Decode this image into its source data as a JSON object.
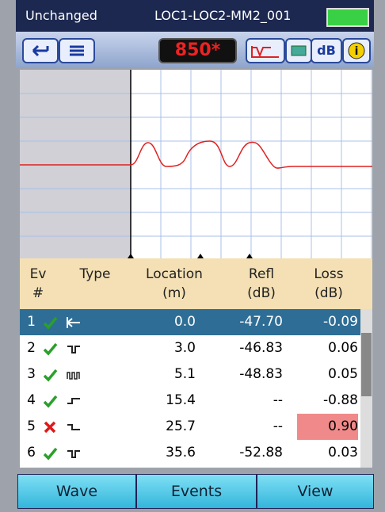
{
  "header": {
    "status": "Unchanged",
    "file": "LOC1-LOC2-MM2_001"
  },
  "toolbar": {
    "wavelength": "850*",
    "units": "dB"
  },
  "table": {
    "columns": [
      [
        "Ev",
        "#"
      ],
      [
        "Type"
      ],
      [
        "Location",
        "(m)"
      ],
      [
        "Refl",
        "(dB)"
      ],
      [
        "Loss",
        "(dB)"
      ]
    ],
    "rows": [
      [
        "1",
        "0.0",
        "-47.70",
        "-0.09"
      ],
      [
        "2",
        "3.0",
        "-46.83",
        "0.06"
      ],
      [
        "3",
        "5.1",
        "-48.83",
        "0.05"
      ],
      [
        "4",
        "15.4",
        "--",
        "-0.88"
      ],
      [
        "5",
        "25.7",
        "--",
        "0.90"
      ],
      [
        "6",
        "35.6",
        "-52.88",
        "0.03"
      ]
    ]
  },
  "buttons": [
    "Wave",
    "Events",
    "View"
  ]
}
